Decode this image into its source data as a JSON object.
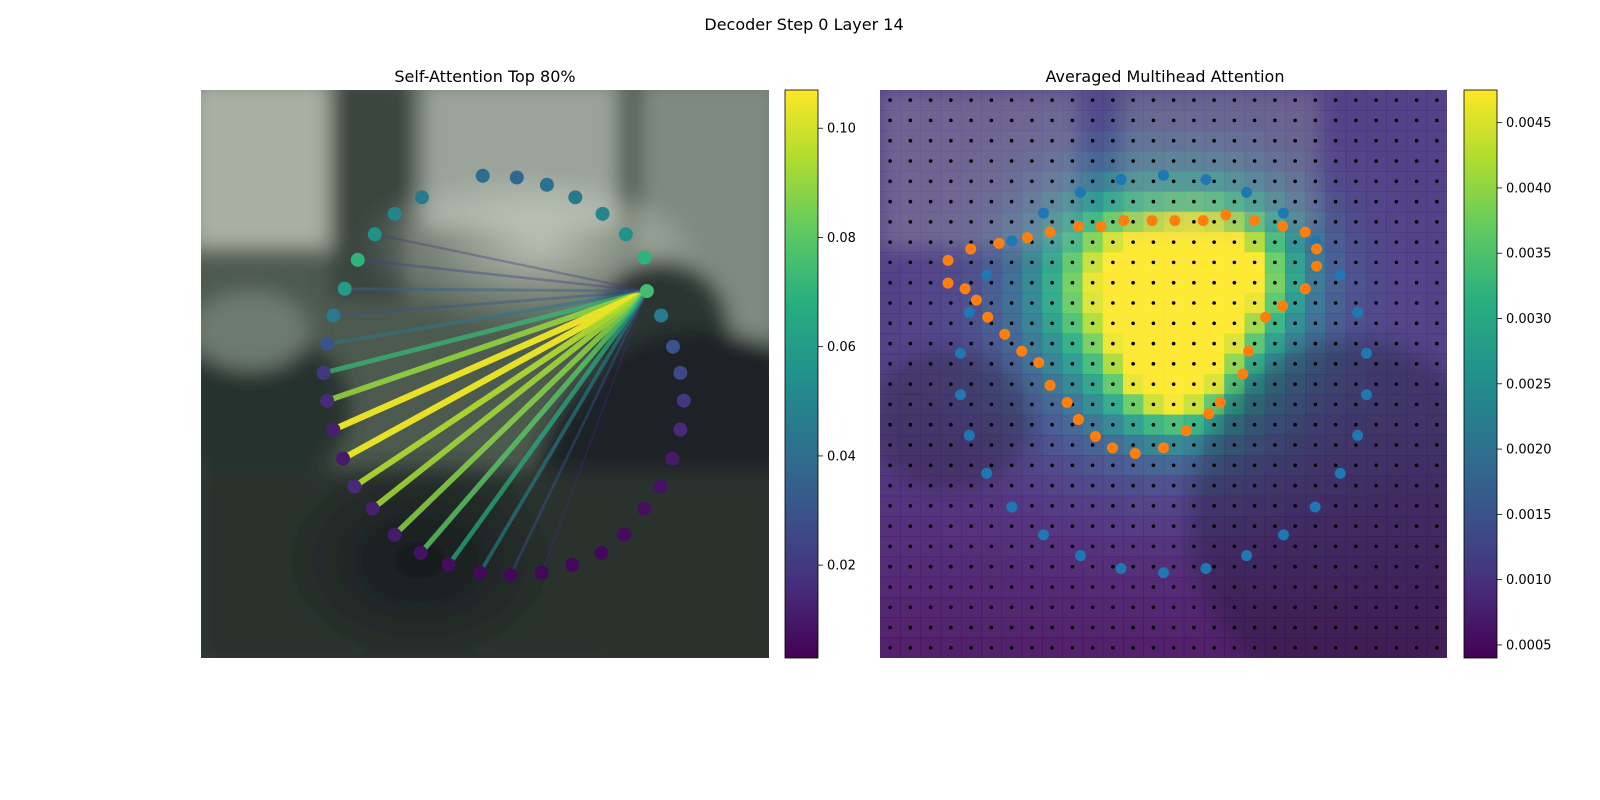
{
  "figure": {
    "title": "Decoder Step 0 Layer 14"
  },
  "chart_data": [
    {
      "type": "scatter",
      "title": "Self-Attention Top 80%",
      "description_series": "circular contour of 38 points; lines from the highlighted point (index 7) to others, colored by attention weight",
      "colormap": "viridis",
      "colorbar": {
        "min": 0.003,
        "max": 0.107,
        "ticks": [
          0.02,
          0.04,
          0.06,
          0.08,
          0.1
        ],
        "tick_labels": [
          "0.02",
          "0.04",
          "0.06",
          "0.08",
          "0.10"
        ]
      },
      "nodes": [
        {
          "x": 0.496,
          "y": 0.151,
          "w": 0.04
        },
        {
          "x": 0.556,
          "y": 0.154,
          "w": 0.038
        },
        {
          "x": 0.609,
          "y": 0.167,
          "w": 0.042
        },
        {
          "x": 0.659,
          "y": 0.189,
          "w": 0.045
        },
        {
          "x": 0.707,
          "y": 0.218,
          "w": 0.05
        },
        {
          "x": 0.748,
          "y": 0.254,
          "w": 0.055
        },
        {
          "x": 0.781,
          "y": 0.295,
          "w": 0.07
        },
        {
          "x": 0.785,
          "y": 0.354,
          "w": 0.075
        },
        {
          "x": 0.81,
          "y": 0.397,
          "w": 0.045
        },
        {
          "x": 0.831,
          "y": 0.452,
          "w": 0.03
        },
        {
          "x": 0.844,
          "y": 0.498,
          "w": 0.025
        },
        {
          "x": 0.85,
          "y": 0.547,
          "w": 0.02
        },
        {
          "x": 0.844,
          "y": 0.598,
          "w": 0.015
        },
        {
          "x": 0.83,
          "y": 0.649,
          "w": 0.01
        },
        {
          "x": 0.809,
          "y": 0.698,
          "w": 0.008
        },
        {
          "x": 0.78,
          "y": 0.737,
          "w": 0.007
        },
        {
          "x": 0.745,
          "y": 0.783,
          "w": 0.006
        },
        {
          "x": 0.705,
          "y": 0.815,
          "w": 0.005
        },
        {
          "x": 0.654,
          "y": 0.836,
          "w": 0.005
        },
        {
          "x": 0.6,
          "y": 0.85,
          "w": 0.005
        },
        {
          "x": 0.545,
          "y": 0.854,
          "w": 0.005
        },
        {
          "x": 0.491,
          "y": 0.85,
          "w": 0.005
        },
        {
          "x": 0.436,
          "y": 0.836,
          "w": 0.006
        },
        {
          "x": 0.387,
          "y": 0.815,
          "w": 0.008
        },
        {
          "x": 0.341,
          "y": 0.783,
          "w": 0.01
        },
        {
          "x": 0.302,
          "y": 0.737,
          "w": 0.012
        },
        {
          "x": 0.27,
          "y": 0.698,
          "w": 0.015
        },
        {
          "x": 0.25,
          "y": 0.649,
          "w": 0.01
        },
        {
          "x": 0.233,
          "y": 0.598,
          "w": 0.012
        },
        {
          "x": 0.222,
          "y": 0.547,
          "w": 0.015
        },
        {
          "x": 0.216,
          "y": 0.498,
          "w": 0.02
        },
        {
          "x": 0.222,
          "y": 0.447,
          "w": 0.03
        },
        {
          "x": 0.233,
          "y": 0.397,
          "w": 0.045
        },
        {
          "x": 0.253,
          "y": 0.35,
          "w": 0.06
        },
        {
          "x": 0.276,
          "y": 0.299,
          "w": 0.07
        },
        {
          "x": 0.306,
          "y": 0.254,
          "w": 0.055
        },
        {
          "x": 0.341,
          "y": 0.218,
          "w": 0.05
        },
        {
          "x": 0.389,
          "y": 0.189,
          "w": 0.045
        }
      ],
      "source_index": 7,
      "lines": [
        {
          "to": 31,
          "w": 0.045
        },
        {
          "to": 30,
          "w": 0.072
        },
        {
          "to": 29,
          "w": 0.09
        },
        {
          "to": 28,
          "w": 0.104
        },
        {
          "to": 27,
          "w": 0.104
        },
        {
          "to": 26,
          "w": 0.095
        },
        {
          "to": 25,
          "w": 0.092
        },
        {
          "to": 24,
          "w": 0.088
        },
        {
          "to": 23,
          "w": 0.08
        },
        {
          "to": 22,
          "w": 0.068
        },
        {
          "to": 21,
          "w": 0.05
        },
        {
          "to": 20,
          "w": 0.03
        },
        {
          "to": 19,
          "w": 0.015
        },
        {
          "to": 33,
          "w": 0.035
        },
        {
          "to": 34,
          "w": 0.025
        },
        {
          "to": 35,
          "w": 0.02
        },
        {
          "to": 32,
          "w": 0.03
        }
      ]
    },
    {
      "type": "heatmap",
      "title": "Averaged Multihead Attention",
      "colormap": "viridis",
      "colorbar": {
        "min": 0.0004,
        "max": 0.00475,
        "ticks": [
          0.0005,
          0.001,
          0.0015,
          0.002,
          0.0025,
          0.003,
          0.0035,
          0.004,
          0.0045
        ],
        "tick_labels": [
          "0.0005",
          "0.0010",
          "0.0015",
          "0.0020",
          "0.0025",
          "0.0030",
          "0.0035",
          "0.0040",
          "0.0045"
        ]
      },
      "grid": {
        "rows": 28,
        "cols": 28
      },
      "hotspots": [
        {
          "x": 0.6,
          "y": 0.32,
          "peak": 0.0043,
          "spread": 0.09
        },
        {
          "x": 0.52,
          "y": 0.5,
          "peak": 0.004,
          "spread": 0.07
        },
        {
          "x": 0.43,
          "y": 0.33,
          "peak": 0.0034,
          "spread": 0.1
        },
        {
          "x": 0.5,
          "y": 0.4,
          "peak": 0.003,
          "spread": 0.16
        }
      ],
      "base_value": 0.001,
      "outer_contour_points": 30,
      "outer_contour": {
        "cx": 0.5,
        "cy": 0.5,
        "rx": 0.36,
        "ry": 0.35
      },
      "inner_contour": [
        [
          0.12,
          0.34
        ],
        [
          0.15,
          0.35
        ],
        [
          0.17,
          0.37
        ],
        [
          0.19,
          0.4
        ],
        [
          0.22,
          0.43
        ],
        [
          0.25,
          0.46
        ],
        [
          0.28,
          0.48
        ],
        [
          0.3,
          0.52
        ],
        [
          0.33,
          0.55
        ],
        [
          0.35,
          0.58
        ],
        [
          0.38,
          0.61
        ],
        [
          0.41,
          0.63
        ],
        [
          0.45,
          0.64
        ],
        [
          0.5,
          0.63
        ],
        [
          0.54,
          0.6
        ],
        [
          0.58,
          0.57
        ],
        [
          0.6,
          0.55
        ],
        [
          0.64,
          0.5
        ],
        [
          0.65,
          0.46
        ],
        [
          0.68,
          0.4
        ],
        [
          0.71,
          0.38
        ],
        [
          0.75,
          0.35
        ],
        [
          0.77,
          0.31
        ],
        [
          0.77,
          0.28
        ],
        [
          0.75,
          0.25
        ],
        [
          0.71,
          0.24
        ],
        [
          0.66,
          0.23
        ],
        [
          0.61,
          0.22
        ],
        [
          0.57,
          0.23
        ],
        [
          0.52,
          0.23
        ],
        [
          0.48,
          0.23
        ],
        [
          0.43,
          0.23
        ],
        [
          0.39,
          0.24
        ],
        [
          0.35,
          0.24
        ],
        [
          0.3,
          0.25
        ],
        [
          0.26,
          0.26
        ],
        [
          0.21,
          0.27
        ],
        [
          0.16,
          0.28
        ],
        [
          0.12,
          0.3
        ]
      ]
    }
  ]
}
